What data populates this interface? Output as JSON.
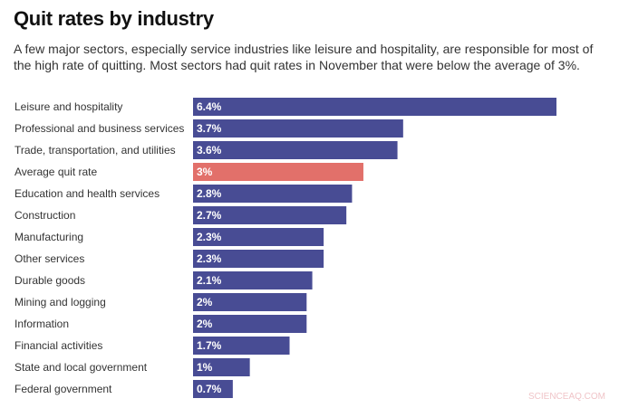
{
  "title": "Quit rates by industry",
  "subtitle": "A few major sectors, especially service industries like leisure and hospitality, are responsible for most of the high rate of quitting. Most sectors had quit rates in November that were below the average of 3%.",
  "watermark": "SCIENCEAQ.COM",
  "colors": {
    "bar": "#484c94",
    "highlight": "#e2706a"
  },
  "chart_data": {
    "type": "bar",
    "orientation": "horizontal",
    "categories": [
      "Leisure and hospitality",
      "Professional and business services",
      "Trade, transportation, and utilities",
      "Average quit rate",
      "Education and health services",
      "Construction",
      "Manufacturing",
      "Other services",
      "Durable goods",
      "Mining and logging",
      "Information",
      "Financial activities",
      "State and local government",
      "Federal government"
    ],
    "values": [
      6.4,
      3.7,
      3.6,
      3,
      2.8,
      2.7,
      2.3,
      2.3,
      2.1,
      2,
      2,
      1.7,
      1,
      0.7
    ],
    "data_labels": [
      "6.4%",
      "3.7%",
      "3.6%",
      "3%",
      "2.8%",
      "2.7%",
      "2.3%",
      "2.3%",
      "2.1%",
      "2%",
      "2%",
      "1.7%",
      "1%",
      "0.7%"
    ],
    "highlight": "Average quit rate",
    "title": "Quit rates by industry",
    "xlabel": "",
    "ylabel": "",
    "xlim": [
      0,
      6.4
    ],
    "grid": false
  }
}
